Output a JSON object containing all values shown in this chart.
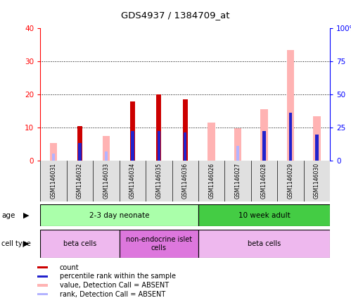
{
  "title": "GDS4937 / 1384709_at",
  "samples": [
    "GSM1146031",
    "GSM1146032",
    "GSM1146033",
    "GSM1146034",
    "GSM1146035",
    "GSM1146036",
    "GSM1146026",
    "GSM1146027",
    "GSM1146028",
    "GSM1146029",
    "GSM1146030"
  ],
  "count_values": [
    0,
    10.5,
    0,
    18,
    20,
    18.5,
    0,
    0,
    0,
    0,
    0
  ],
  "percentile_values": [
    0,
    5.5,
    0,
    9,
    9,
    8.5,
    0,
    0,
    9,
    14.5,
    8
  ],
  "absent_value_values": [
    5.5,
    0,
    7.5,
    0,
    0,
    0,
    11.5,
    9.8,
    15.5,
    33.5,
    13.5
  ],
  "absent_rank_values": [
    2.2,
    0,
    2.8,
    0,
    0,
    0,
    0,
    4.5,
    0,
    0,
    0
  ],
  "count_color": "#cc0000",
  "percentile_color": "#2222cc",
  "absent_value_color": "#ffb3b3",
  "absent_rank_color": "#b3b3ff",
  "ylim_left": [
    0,
    40
  ],
  "ylim_right": [
    0,
    100
  ],
  "yticks_left": [
    0,
    10,
    20,
    30,
    40
  ],
  "yticks_right": [
    0,
    25,
    50,
    75,
    100
  ],
  "ytick_labels_left": [
    "0",
    "10",
    "20",
    "30",
    "40"
  ],
  "ytick_labels_right": [
    "0",
    "25",
    "50",
    "75",
    "100%"
  ],
  "age_groups": [
    {
      "label": "2-3 day neonate",
      "start": 0,
      "end": 6,
      "color": "#aaffaa"
    },
    {
      "label": "10 week adult",
      "start": 6,
      "end": 11,
      "color": "#44cc44"
    }
  ],
  "cell_type_groups": [
    {
      "label": "beta cells",
      "start": 0,
      "end": 3,
      "color": "#eeb8ee"
    },
    {
      "label": "non-endocrine islet\ncells",
      "start": 3,
      "end": 6,
      "color": "#dd77dd"
    },
    {
      "label": "beta cells",
      "start": 6,
      "end": 11,
      "color": "#eeb8ee"
    }
  ],
  "legend_items": [
    {
      "label": "count",
      "color": "#cc0000"
    },
    {
      "label": "percentile rank within the sample",
      "color": "#2222cc"
    },
    {
      "label": "value, Detection Call = ABSENT",
      "color": "#ffb3b3"
    },
    {
      "label": "rank, Detection Call = ABSENT",
      "color": "#b3b3ff"
    }
  ]
}
